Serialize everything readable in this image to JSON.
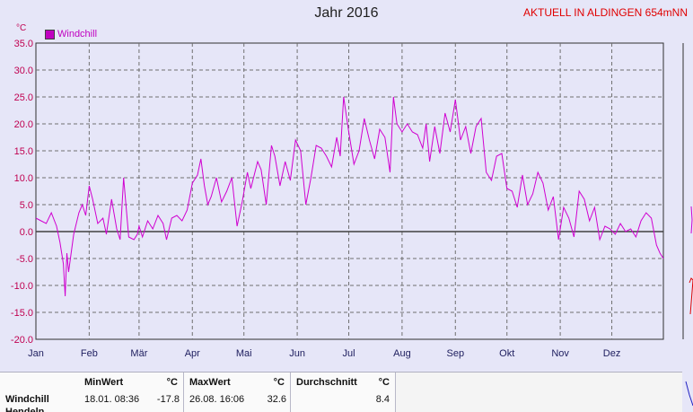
{
  "header": {
    "title": "Jahr 2016",
    "banner": "AKTUELL IN ALDINGEN 654mNN"
  },
  "chart_data": {
    "type": "line",
    "title": "Jahr 2016",
    "ylabel": "°C",
    "ylim": [
      -20,
      35
    ],
    "yticks": [
      "35.0",
      "30.0",
      "25.0",
      "20.0",
      "15.0",
      "10.0",
      "5.0",
      "0.0",
      "-5.0",
      "-10.0",
      "-15.0",
      "-20.0"
    ],
    "x_tick_labels": [
      "Jan",
      "Feb",
      "Mär",
      "Apr",
      "Mai",
      "Jun",
      "Jul",
      "Aug",
      "Sep",
      "Okt",
      "Nov",
      "Dez"
    ],
    "grid": true,
    "legend_position": "top-left",
    "series": [
      {
        "name": "Windchill",
        "color": "#d000d0",
        "x_days": [
          1,
          4,
          7,
          10,
          13,
          15,
          17,
          18,
          19,
          20,
          23,
          26,
          28,
          30,
          32,
          34,
          37,
          40,
          42,
          45,
          48,
          50,
          52,
          55,
          58,
          60,
          61,
          63,
          66,
          69,
          72,
          75,
          77,
          80,
          83,
          86,
          89,
          92,
          95,
          97,
          99,
          101,
          103,
          106,
          109,
          112,
          115,
          118,
          121,
          124,
          126,
          128,
          130,
          132,
          135,
          138,
          140,
          143,
          146,
          149,
          152,
          155,
          158,
          161,
          164,
          167,
          170,
          173,
          176,
          178,
          180,
          183,
          186,
          189,
          192,
          195,
          198,
          201,
          204,
          207,
          209,
          211,
          214,
          217,
          220,
          223,
          226,
          228,
          230,
          233,
          236,
          239,
          242,
          245,
          248,
          251,
          254,
          257,
          260,
          263,
          266,
          269,
          272,
          275,
          278,
          281,
          284,
          287,
          290,
          293,
          296,
          299,
          302,
          305,
          308,
          311,
          314,
          317,
          320,
          323,
          326,
          329,
          332,
          335,
          338,
          341,
          344,
          347,
          350,
          353,
          356,
          359,
          362,
          364,
          366
        ],
        "values": [
          2.5,
          2.0,
          1.5,
          3.5,
          1.0,
          -2.0,
          -6.0,
          -12.0,
          -4.0,
          -7.5,
          -0.5,
          3.5,
          5.0,
          3.0,
          8.5,
          6.0,
          1.5,
          2.5,
          -0.5,
          6.0,
          0.5,
          -1.5,
          10.0,
          -1.0,
          -1.5,
          -0.5,
          1.0,
          -1.0,
          2.0,
          0.5,
          3.0,
          1.5,
          -1.5,
          2.5,
          3.0,
          2.0,
          4.0,
          9.0,
          10.5,
          13.5,
          8.5,
          5.0,
          6.5,
          10.0,
          5.5,
          7.5,
          10.0,
          1.0,
          5.5,
          11.0,
          8.0,
          10.5,
          13.0,
          11.5,
          5.0,
          16.0,
          14.0,
          8.5,
          13.0,
          9.5,
          17.0,
          15.0,
          5.0,
          10.0,
          16.0,
          15.5,
          14.0,
          12.0,
          17.5,
          14.0,
          25.0,
          18.5,
          12.5,
          15.0,
          21.0,
          17.0,
          13.5,
          19.0,
          17.5,
          11.0,
          25.0,
          20.0,
          18.5,
          20.0,
          18.5,
          18.0,
          15.5,
          20.0,
          13.0,
          19.5,
          14.5,
          22.0,
          18.5,
          24.5,
          17.0,
          19.5,
          14.5,
          19.5,
          21.0,
          11.0,
          9.5,
          14.0,
          14.5,
          8.0,
          7.5,
          4.5,
          10.5,
          5.0,
          7.0,
          11.0,
          9.0,
          4.0,
          6.5,
          -1.5,
          4.5,
          2.5,
          -1.0,
          7.5,
          6.0,
          2.0,
          4.5,
          -1.5,
          1.0,
          0.5,
          -0.5,
          1.5,
          0.0,
          0.5,
          -1.0,
          2.0,
          3.5,
          2.5,
          -2.5,
          -4.0,
          -5.0
        ]
      }
    ]
  },
  "stats": {
    "col_min_header": "MinWert",
    "col_max_header": "MaxWert",
    "col_avg_header": "Durchschnitt",
    "unit": "°C",
    "row_label": "Windchill",
    "row_label_2": "Hendeln",
    "min_time": "18.01.  08:36",
    "min_value": "-17.8",
    "max_time": "26.08.  16:06",
    "max_value": "32.6",
    "avg_value": "8.4"
  }
}
